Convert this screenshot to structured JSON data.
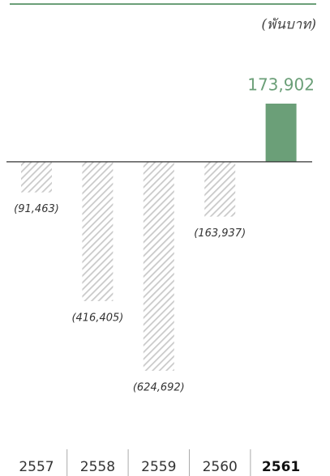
{
  "chart_data": {
    "type": "bar",
    "unit_label": "(พันบาท)",
    "categories": [
      "2557",
      "2558",
      "2559",
      "2560",
      "2561"
    ],
    "values": [
      -91463,
      -416405,
      -624692,
      -163937,
      173902
    ],
    "value_labels": [
      "(91,463)",
      "(416,405)",
      "(624,692)",
      "(163,937)",
      "173,902"
    ],
    "color": "#6b9f78",
    "negative_color": "#c9c9c9"
  }
}
